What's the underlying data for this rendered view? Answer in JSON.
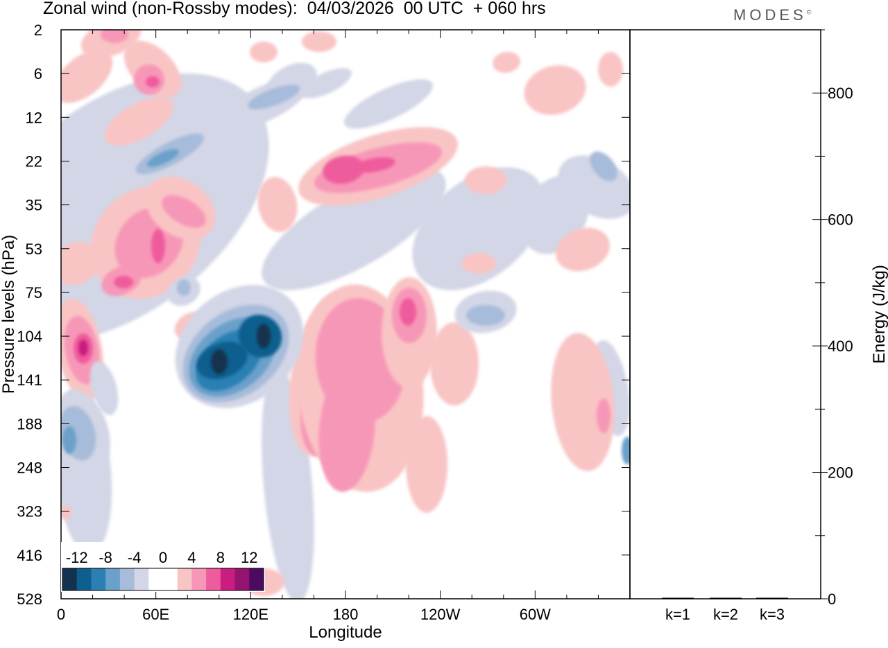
{
  "header": {
    "title": "Zonal wind (non-Rossby modes):  04/03/2026  00 UTC  + 060 hrs",
    "logo": "MODES",
    "logo_mark": "©"
  },
  "chart_data": [
    {
      "type": "heatmap",
      "title": "Zonal wind (non-Rossby modes)",
      "xlabel": "Longitude",
      "ylabel": "Pressure levels (hPa)",
      "x_ticks": [
        "0",
        "60E",
        "120E",
        "180",
        "120W",
        "60W"
      ],
      "x_tick_values": [
        0,
        60,
        120,
        180,
        240,
        300
      ],
      "xlim": [
        0,
        360
      ],
      "y_ticks": [
        "2",
        "6",
        "12",
        "22",
        "35",
        "53",
        "75",
        "104",
        "141",
        "188",
        "248",
        "323",
        "416",
        "528"
      ],
      "colorbar": {
        "labels": [
          "-12",
          "-8",
          "-4",
          "0",
          "4",
          "8",
          "12"
        ],
        "colors": [
          "#14324e",
          "#0d5f8e",
          "#2a80b4",
          "#6aa0c9",
          "#a7bcda",
          "#d3d6e6",
          "#ffffff",
          "#ffffff",
          "#f9c4c4",
          "#f797b7",
          "#ef5c9d",
          "#c91e7f",
          "#951470",
          "#4b0b62"
        ]
      },
      "features": [
        {
          "name": "blue-core-main",
          "lon": 100,
          "level": "141",
          "value": -12
        },
        {
          "name": "blue-core-secondary",
          "lon": 128,
          "level": "104",
          "value": -12
        },
        {
          "name": "pink-core-west",
          "lon": 13,
          "level": "104",
          "value": 10
        },
        {
          "name": "pink-core-180",
          "lon": 205,
          "level": "22",
          "value": 10
        },
        {
          "name": "pink-core-east",
          "lon": 218,
          "level": "75",
          "value": 8
        }
      ]
    },
    {
      "type": "bar",
      "ylabel": "Energy (J/kg)",
      "categories": [
        "k=1",
        "k=2",
        "k=3"
      ],
      "values": [
        1,
        1,
        1
      ],
      "ylim": [
        0,
        900
      ],
      "y_ticks": [
        "0",
        "200",
        "400",
        "600",
        "800"
      ],
      "y_tick_values": [
        0,
        200,
        400,
        600,
        800
      ]
    }
  ]
}
